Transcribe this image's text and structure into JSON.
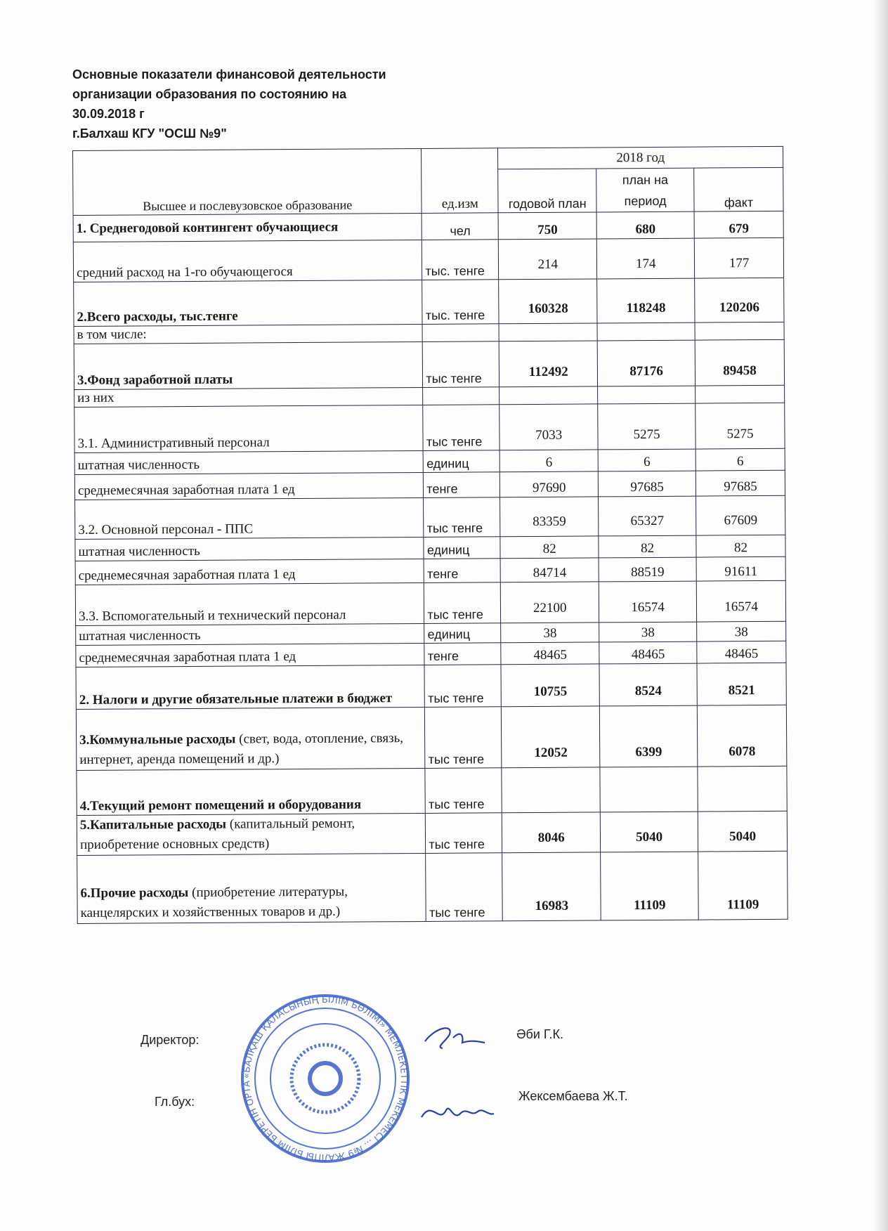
{
  "title_lines": [
    "Основные  показатели финансовой деятельности",
    "организации образования по состоянию на",
    "30.09.2018 г",
    "г.Балхаш КГУ \"ОСШ №9\""
  ],
  "table": {
    "header": {
      "col0": "Высшее и послевузовское образование",
      "col1": "ед.изм",
      "year": "2018 год",
      "col2": "годовой план",
      "col3": "план на период",
      "col4": "факт"
    },
    "rows": [
      {
        "label": "1. Среднегодовой контингент обучающиеся",
        "unit": "чел",
        "plan": "750",
        "period": "680",
        "fact": "679",
        "bold": true
      },
      {
        "label": "средний расход на 1-го обучающегося",
        "unit": "тыс. тенге",
        "plan": "214",
        "period": "174",
        "fact": "177",
        "bold": false
      },
      {
        "label": "2.Всего расходы, тыс.тенге",
        "unit": "тыс. тенге",
        "plan": "160328",
        "period": "118248",
        "fact": "120206",
        "bold": true
      },
      {
        "label": "в том числе:",
        "unit": "",
        "plan": "",
        "period": "",
        "fact": "",
        "bold": false
      },
      {
        "label": "3.Фонд заработной платы",
        "unit": "тыс тенге",
        "plan": "112492",
        "period": "87176",
        "fact": "89458",
        "bold": true
      },
      {
        "label": "из них",
        "unit": "",
        "plan": "",
        "period": "",
        "fact": "",
        "bold": false
      },
      {
        "label": "3.1. Административный персонал",
        "unit": "тыс тенге",
        "plan": "7033",
        "period": "5275",
        "fact": "5275",
        "bold": false
      },
      {
        "label": "штатная численность",
        "unit": "единиц",
        "plan": "6",
        "period": "6",
        "fact": "6",
        "bold": false
      },
      {
        "label": "среднемесячная заработная плата 1 ед",
        "unit": "тенге",
        "plan": "97690",
        "period": "97685",
        "fact": "97685",
        "bold": false
      },
      {
        "label": "3.2. Основной персонал - ППС",
        "unit": "тыс тенге",
        "plan": "83359",
        "period": "65327",
        "fact": "67609",
        "bold": false
      },
      {
        "label": "штатная численность",
        "unit": "единиц",
        "plan": "82",
        "period": "82",
        "fact": "82",
        "bold": false
      },
      {
        "label": "среднемесячная заработная плата 1 ед",
        "unit": "тенге",
        "plan": "84714",
        "period": "88519",
        "fact": "91611",
        "bold": false
      },
      {
        "label": "3.3. Вспомогательный и технический персонал",
        "unit": "тыс тенге",
        "plan": "22100",
        "period": "16574",
        "fact": "16574",
        "bold": false
      },
      {
        "label": "штатная численность",
        "unit": "единиц",
        "plan": "38",
        "period": "38",
        "fact": "38",
        "bold": false
      },
      {
        "label": "среднемесячная заработная плата 1 ед",
        "unit": "тенге",
        "plan": "48465",
        "period": "48465",
        "fact": "48465",
        "bold": false
      },
      {
        "label": "2. Налоги и другие обязательные платежи в бюджет",
        "unit": "тыс тенге",
        "plan": "10755",
        "period": "8524",
        "fact": "8521",
        "bold": true
      },
      {
        "label_bold": "3.Коммунальные расходы",
        "label_rest": "  (свет, вода, отопление, связь, интернет, аренда помещений и др.)",
        "unit": "тыс тенге",
        "plan": "12052",
        "period": "6399",
        "fact": "6078",
        "bold": true
      },
      {
        "label": "4.Текущий ремонт помещений и оборудования",
        "unit": "тыс тенге",
        "plan": "",
        "period": "",
        "fact": "",
        "bold": true
      },
      {
        "label_bold": "5.Капитальные расходы",
        "label_rest": " (капитальный ремонт, приобретение основных средств)",
        "unit": "тыс тенге",
        "plan": "8046",
        "period": "5040",
        "fact": "5040",
        "bold": true
      },
      {
        "label_bold": "6.Прочие расходы",
        "label_rest": " (приобретение литературы, канцелярских и хозяйственных товаров и др.)",
        "unit": "тыс тенге",
        "plan": "16983",
        "period": "11109",
        "fact": "11109",
        "bold": true
      }
    ]
  },
  "signatures": {
    "director_label": "Директор:",
    "director_name": "Әби Г.К.",
    "accountant_label": "Гл.бух:",
    "accountant_name": "Жексембаева Ж.Т."
  },
  "stamp": {
    "text": "«БАЛҚАШ ҚАЛАСЫНЫҢ БІЛІМ БӨЛІМІ» МЕМЛЕКЕТТІК МЕКЕМЕСІ ... №9 ЖАЛПЫ БІЛІМ БЕРЕТІН ОРТА МЕКТЕБІ КОММУНАЛДЫҚ МЕМЛЕКЕТТІК МЕКЕМЕСІ БСН 061240005288",
    "color": "#3a5fc8"
  },
  "colors": {
    "ink": "#1a1a1a",
    "border": "#2b2440",
    "stamp": "#3a5fc8"
  }
}
